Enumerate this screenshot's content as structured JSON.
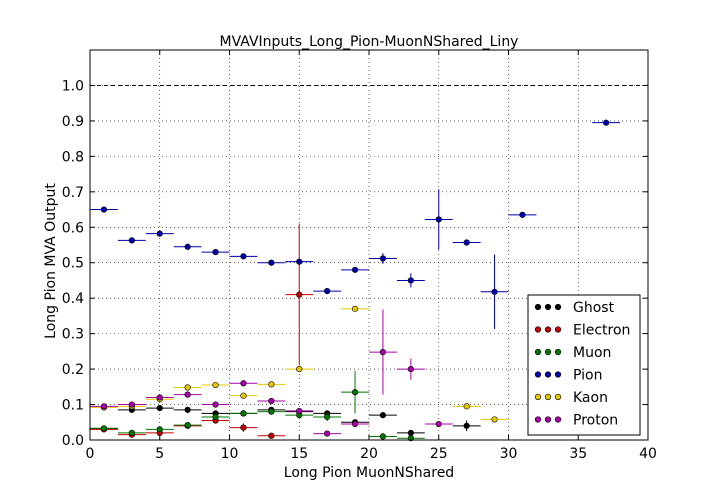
{
  "chart_data": {
    "type": "scatter",
    "title": "MVAVInputs_Long_Pion-MuonNShared_Liny",
    "xlabel": "Long Pion MuonNShared",
    "ylabel": "Long Pion MVA Output",
    "xlim": [
      0,
      40
    ],
    "ylim": [
      0,
      1.1
    ],
    "x_ticks": [
      "0",
      "5",
      "10",
      "15",
      "20",
      "25",
      "30",
      "35",
      "40"
    ],
    "y_ticks": [
      "0.0",
      "0.1",
      "0.2",
      "0.3",
      "0.4",
      "0.5",
      "0.6",
      "0.7",
      "0.8",
      "0.9",
      "1.0"
    ],
    "grid": true,
    "reference_line_y": 1.0,
    "legend_position": "bottom-right",
    "series": [
      {
        "name": "Ghost",
        "color": "#000000",
        "points": [
          {
            "x": 1,
            "xerr": 1,
            "y": 0.032,
            "yerr": 0.003
          },
          {
            "x": 3,
            "xerr": 1,
            "y": 0.085,
            "yerr": 0.003
          },
          {
            "x": 5,
            "xerr": 1,
            "y": 0.09,
            "yerr": 0.003
          },
          {
            "x": 7,
            "xerr": 1,
            "y": 0.085,
            "yerr": 0.003
          },
          {
            "x": 9,
            "xerr": 1,
            "y": 0.075,
            "yerr": 0.004
          },
          {
            "x": 11,
            "xerr": 1,
            "y": 0.075,
            "yerr": 0.004
          },
          {
            "x": 13,
            "xerr": 1,
            "y": 0.085,
            "yerr": 0.004
          },
          {
            "x": 15,
            "xerr": 1,
            "y": 0.08,
            "yerr": 0.005
          },
          {
            "x": 17,
            "xerr": 1,
            "y": 0.075,
            "yerr": 0.006
          },
          {
            "x": 19,
            "xerr": 1,
            "y": 0.05,
            "yerr": 0.007
          },
          {
            "x": 21,
            "xerr": 1,
            "y": 0.07,
            "yerr": 0.008
          },
          {
            "x": 23,
            "xerr": 1,
            "y": 0.02,
            "yerr": 0.006
          },
          {
            "x": 27,
            "xerr": 1,
            "y": 0.04,
            "yerr": 0.015
          }
        ]
      },
      {
        "name": "Electron",
        "color": "#cc0000",
        "points": [
          {
            "x": 1,
            "xerr": 1,
            "y": 0.03,
            "yerr": 0.003
          },
          {
            "x": 3,
            "xerr": 1,
            "y": 0.015,
            "yerr": 0.004
          },
          {
            "x": 5,
            "xerr": 1,
            "y": 0.02,
            "yerr": 0.005
          },
          {
            "x": 7,
            "xerr": 1,
            "y": 0.04,
            "yerr": 0.006
          },
          {
            "x": 9,
            "xerr": 1,
            "y": 0.055,
            "yerr": 0.008
          },
          {
            "x": 11,
            "xerr": 1,
            "y": 0.035,
            "yerr": 0.012
          },
          {
            "x": 13,
            "xerr": 1,
            "y": 0.012,
            "yerr": 0.005
          },
          {
            "x": 15,
            "xerr": 1,
            "y": 0.41,
            "yerr": 0.2
          }
        ]
      },
      {
        "name": "Muon",
        "color": "#007700",
        "points": [
          {
            "x": 1,
            "xerr": 1,
            "y": 0.033,
            "yerr": 0.003
          },
          {
            "x": 3,
            "xerr": 1,
            "y": 0.02,
            "yerr": 0.003
          },
          {
            "x": 5,
            "xerr": 1,
            "y": 0.03,
            "yerr": 0.004
          },
          {
            "x": 7,
            "xerr": 1,
            "y": 0.042,
            "yerr": 0.004
          },
          {
            "x": 9,
            "xerr": 1,
            "y": 0.065,
            "yerr": 0.005
          },
          {
            "x": 11,
            "xerr": 1,
            "y": 0.075,
            "yerr": 0.005
          },
          {
            "x": 13,
            "xerr": 1,
            "y": 0.08,
            "yerr": 0.006
          },
          {
            "x": 15,
            "xerr": 1,
            "y": 0.07,
            "yerr": 0.008
          },
          {
            "x": 17,
            "xerr": 1,
            "y": 0.065,
            "yerr": 0.012
          },
          {
            "x": 19,
            "xerr": 1,
            "y": 0.135,
            "yerr": 0.06
          },
          {
            "x": 21,
            "xerr": 1,
            "y": 0.01,
            "yerr": 0.01
          },
          {
            "x": 23,
            "xerr": 1,
            "y": 0.005,
            "yerr": 0.005
          }
        ]
      },
      {
        "name": "Pion",
        "color": "#0000aa",
        "points": [
          {
            "x": 1,
            "xerr": 1,
            "y": 0.65,
            "yerr": 0.002
          },
          {
            "x": 3,
            "xerr": 1,
            "y": 0.563,
            "yerr": 0.002
          },
          {
            "x": 5,
            "xerr": 1,
            "y": 0.582,
            "yerr": 0.002
          },
          {
            "x": 7,
            "xerr": 1,
            "y": 0.545,
            "yerr": 0.002
          },
          {
            "x": 9,
            "xerr": 1,
            "y": 0.53,
            "yerr": 0.002
          },
          {
            "x": 11,
            "xerr": 1,
            "y": 0.518,
            "yerr": 0.003
          },
          {
            "x": 13,
            "xerr": 1,
            "y": 0.5,
            "yerr": 0.003
          },
          {
            "x": 15,
            "xerr": 1,
            "y": 0.503,
            "yerr": 0.004
          },
          {
            "x": 17,
            "xerr": 1,
            "y": 0.42,
            "yerr": 0.004
          },
          {
            "x": 19,
            "xerr": 1,
            "y": 0.48,
            "yerr": 0.006
          },
          {
            "x": 21,
            "xerr": 1,
            "y": 0.512,
            "yerr": 0.015
          },
          {
            "x": 23,
            "xerr": 1,
            "y": 0.45,
            "yerr": 0.02
          },
          {
            "x": 25,
            "xerr": 1,
            "y": 0.622,
            "yerr": 0.085
          },
          {
            "x": 27,
            "xerr": 1,
            "y": 0.557,
            "yerr": 0.005
          },
          {
            "x": 29,
            "xerr": 1,
            "y": 0.418,
            "yerr": 0.105
          },
          {
            "x": 31,
            "xerr": 1,
            "y": 0.635,
            "yerr": 0.004
          },
          {
            "x": 37,
            "xerr": 1,
            "y": 0.895,
            "yerr": 0.004
          }
        ]
      },
      {
        "name": "Kaon",
        "color": "#e6c800",
        "points": [
          {
            "x": 1,
            "xerr": 1,
            "y": 0.092,
            "yerr": 0.003
          },
          {
            "x": 3,
            "xerr": 1,
            "y": 0.095,
            "yerr": 0.003
          },
          {
            "x": 5,
            "xerr": 1,
            "y": 0.115,
            "yerr": 0.003
          },
          {
            "x": 7,
            "xerr": 1,
            "y": 0.148,
            "yerr": 0.004
          },
          {
            "x": 9,
            "xerr": 1,
            "y": 0.155,
            "yerr": 0.004
          },
          {
            "x": 11,
            "xerr": 1,
            "y": 0.125,
            "yerr": 0.005
          },
          {
            "x": 13,
            "xerr": 1,
            "y": 0.157,
            "yerr": 0.005
          },
          {
            "x": 15,
            "xerr": 1,
            "y": 0.2,
            "yerr": 0.006
          },
          {
            "x": 19,
            "xerr": 1,
            "y": 0.37,
            "yerr": 0.005
          },
          {
            "x": 27,
            "xerr": 1,
            "y": 0.095,
            "yerr": 0.004
          },
          {
            "x": 29,
            "xerr": 1,
            "y": 0.058,
            "yerr": 0.004
          }
        ]
      },
      {
        "name": "Proton",
        "color": "#aa00aa",
        "points": [
          {
            "x": 1,
            "xerr": 1,
            "y": 0.095,
            "yerr": 0.003
          },
          {
            "x": 3,
            "xerr": 1,
            "y": 0.1,
            "yerr": 0.003
          },
          {
            "x": 5,
            "xerr": 1,
            "y": 0.12,
            "yerr": 0.003
          },
          {
            "x": 7,
            "xerr": 1,
            "y": 0.128,
            "yerr": 0.003
          },
          {
            "x": 9,
            "xerr": 1,
            "y": 0.1,
            "yerr": 0.004
          },
          {
            "x": 11,
            "xerr": 1,
            "y": 0.16,
            "yerr": 0.004
          },
          {
            "x": 13,
            "xerr": 1,
            "y": 0.11,
            "yerr": 0.005
          },
          {
            "x": 15,
            "xerr": 1,
            "y": 0.082,
            "yerr": 0.005
          },
          {
            "x": 17,
            "xerr": 1,
            "y": 0.018,
            "yerr": 0.004
          },
          {
            "x": 19,
            "xerr": 1,
            "y": 0.045,
            "yerr": 0.006
          },
          {
            "x": 21,
            "xerr": 1,
            "y": 0.248,
            "yerr": 0.12
          },
          {
            "x": 23,
            "xerr": 1,
            "y": 0.2,
            "yerr": 0.03
          },
          {
            "x": 25,
            "xerr": 1,
            "y": 0.045,
            "yerr": 0.004
          }
        ]
      }
    ]
  }
}
